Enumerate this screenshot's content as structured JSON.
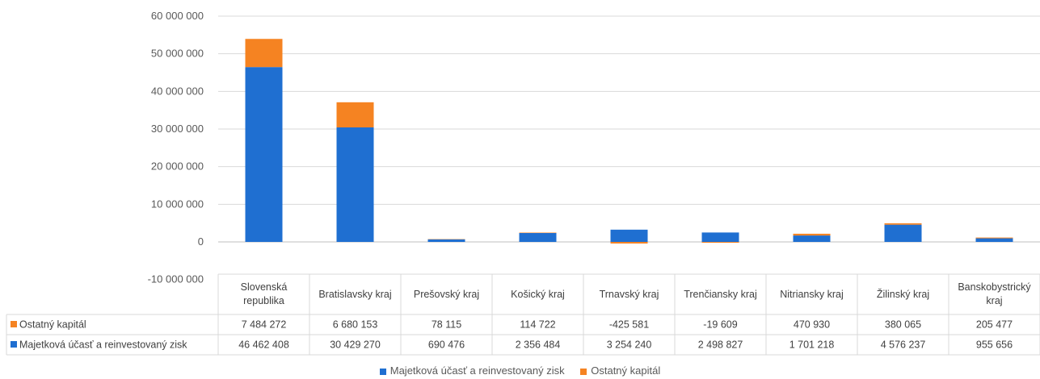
{
  "chart_data": {
    "type": "bar",
    "stacked": true,
    "categories": [
      [
        "Slovenská",
        "republika"
      ],
      [
        "Bratislavsky kraj"
      ],
      [
        "Prešovský kraj"
      ],
      [
        "Košický kraj"
      ],
      [
        "Trnavský kraj"
      ],
      [
        "Trenčiansky kraj"
      ],
      [
        "Nitriansky kraj"
      ],
      [
        "Žilinský kraj"
      ],
      [
        "Banskobystrický",
        "kraj"
      ]
    ],
    "series": [
      {
        "name": "Majetková účasť a reinvestovaný zisk",
        "color": "#1f6fd1",
        "values": [
          46462408,
          30429270,
          690476,
          2356484,
          3254240,
          2498827,
          1701218,
          4576237,
          955656
        ],
        "labels": [
          "46 462 408",
          "30 429 270",
          "690 476",
          "2 356 484",
          "3 254 240",
          "2 498 827",
          "1 701 218",
          "4 576 237",
          "955 656"
        ]
      },
      {
        "name": "Ostatný kapitál",
        "color": "#f58322",
        "values": [
          7484272,
          6680153,
          78115,
          114722,
          -425581,
          -19609,
          470930,
          380065,
          205477
        ],
        "labels": [
          "7 484 272",
          "6 680 153",
          "78 115",
          "114 722",
          "-425 581",
          "-19 609",
          "470 930",
          "380 065",
          "205 477"
        ]
      }
    ],
    "yticks": [
      {
        "value": 60000000,
        "label": "60 000 000"
      },
      {
        "value": 50000000,
        "label": "50 000 000"
      },
      {
        "value": 40000000,
        "label": "40 000 000"
      },
      {
        "value": 30000000,
        "label": "30 000 000"
      },
      {
        "value": 20000000,
        "label": "20 000 000"
      },
      {
        "value": 10000000,
        "label": "10 000 000"
      },
      {
        "value": 0,
        "label": "0"
      },
      {
        "value": -10000000,
        "label": "-10 000 000"
      }
    ],
    "ylim": [
      -10000000,
      60000000
    ],
    "grid": true,
    "legend_position": "bottom",
    "data_table": true,
    "title": "",
    "xlabel": "",
    "ylabel": ""
  },
  "legend": {
    "items": [
      "Majetková účasť a reinvestovaný zisk",
      "Ostatný kapitál"
    ]
  }
}
